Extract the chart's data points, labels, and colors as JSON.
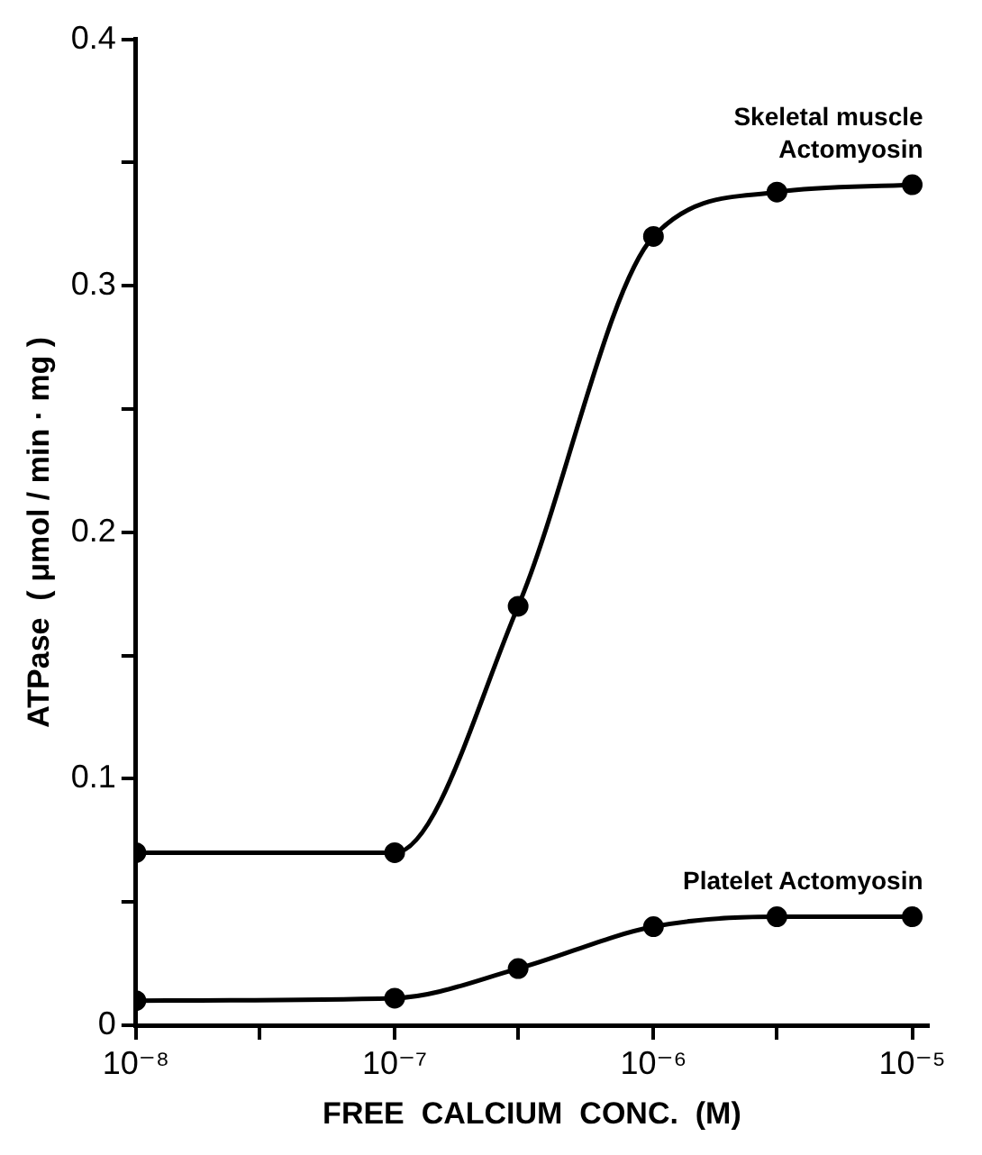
{
  "chart_data": {
    "type": "line",
    "xlabel": "FREE  CALCIUM  CONC.  (M)",
    "ylabel": "ATPase  ( μmol / min · mg )",
    "log": "x",
    "grid": false,
    "legend": false,
    "marker": "circle",
    "line_style": "solid",
    "x": [
      1e-08,
      1e-07,
      3e-07,
      1e-06,
      3e-06,
      1e-05
    ],
    "xlim": [
      1e-08,
      1.15e-05
    ],
    "xticks": [
      {
        "value": 1e-08,
        "label": "10⁻⁸"
      },
      {
        "value": 3e-08,
        "label": null
      },
      {
        "value": 1e-07,
        "label": "10⁻⁷"
      },
      {
        "value": 3e-07,
        "label": null
      },
      {
        "value": 1e-06,
        "label": "10⁻⁶"
      },
      {
        "value": 3e-06,
        "label": null
      },
      {
        "value": 1e-05,
        "label": "10⁻⁵"
      }
    ],
    "ylim": [
      0,
      0.4
    ],
    "yticks": [
      0,
      {
        "value": 0.05,
        "label": null
      },
      0.1,
      {
        "value": 0.15,
        "label": null
      },
      0.2,
      {
        "value": 0.25,
        "label": null
      },
      0.3,
      {
        "value": 0.35,
        "label": null
      },
      0.4
    ],
    "series": [
      {
        "name": "Skeletal muscle Actomyosin",
        "color": "#000000",
        "values": [
          0.07,
          0.07,
          0.17,
          0.32,
          0.338,
          0.341
        ]
      },
      {
        "name": "Platelet Actomyosin",
        "color": "#000000",
        "values": [
          0.01,
          0.011,
          0.023,
          0.04,
          0.044,
          0.044
        ]
      }
    ]
  }
}
